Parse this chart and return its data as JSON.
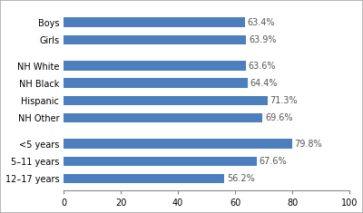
{
  "categories": [
    "Boys",
    "Girls",
    "NH White",
    "NH Black",
    "Hispanic",
    "NH Other",
    "<5 years",
    "5–11 years",
    "12–17 years"
  ],
  "values": [
    63.4,
    63.9,
    63.6,
    64.4,
    71.3,
    69.6,
    79.8,
    67.6,
    56.2
  ],
  "labels": [
    "63.4%",
    "63.9%",
    "63.6%",
    "64.4%",
    "71.3%",
    "69.6%",
    "79.8%",
    "67.6%",
    "56.2%"
  ],
  "bar_color": "#4d7fbe",
  "xlim": [
    0,
    100
  ],
  "xticks": [
    0,
    20,
    40,
    60,
    80,
    100
  ],
  "background_color": "#ffffff",
  "bar_height": 0.55,
  "label_fontsize": 7.0,
  "tick_fontsize": 7.0,
  "border_color": "#aaaaaa",
  "y_positions": [
    10,
    9,
    7.5,
    6.5,
    5.5,
    4.5,
    3,
    2,
    1
  ]
}
